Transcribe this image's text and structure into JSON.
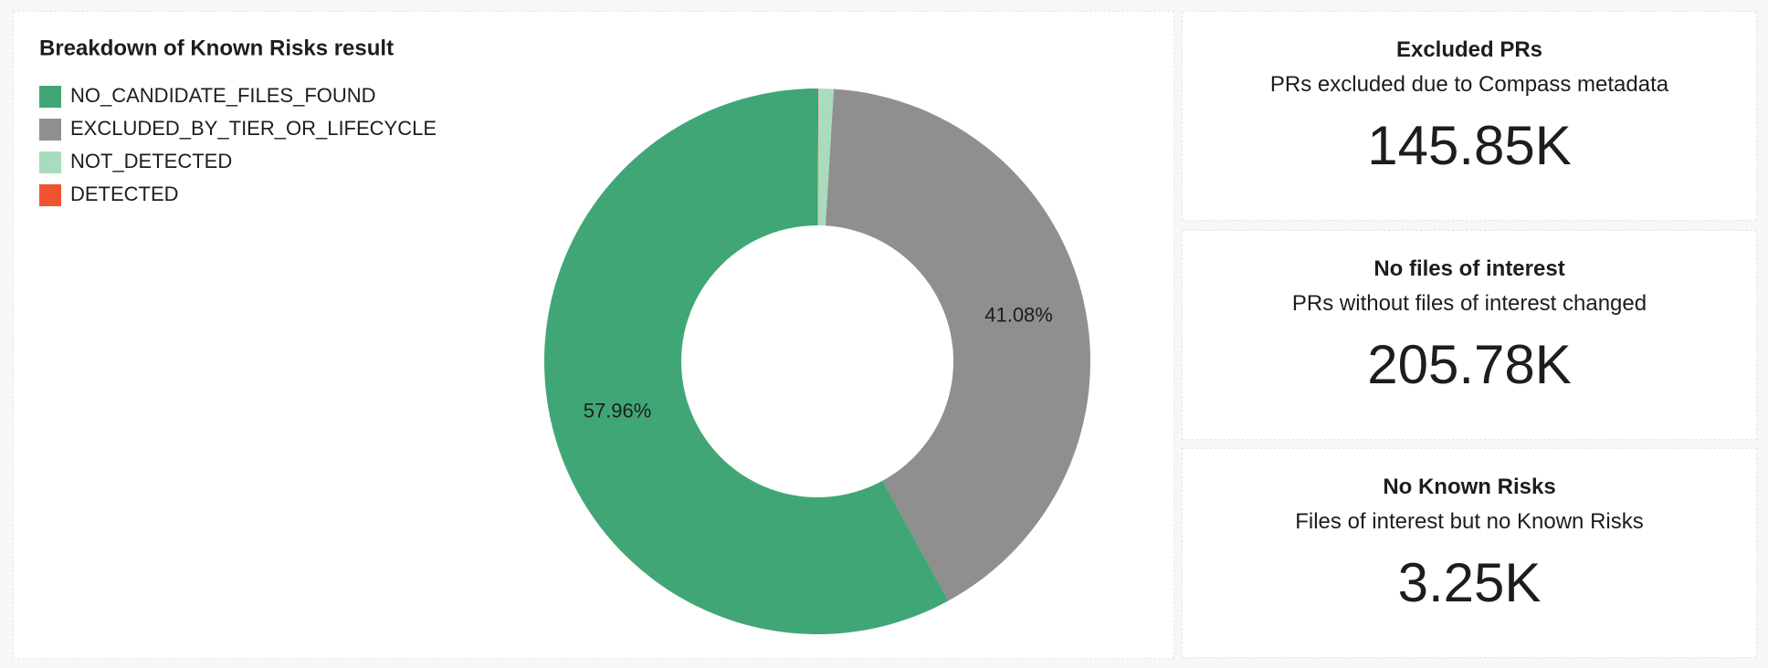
{
  "chart_data": {
    "type": "donut",
    "title": "Breakdown of Known Risks result",
    "categories": [
      "NO_CANDIDATE_FILES_FOUND",
      "EXCLUDED_BY_TIER_OR_LIFECYCLE",
      "NOT_DETECTED",
      "DETECTED"
    ],
    "values": [
      57.96,
      41.08,
      0.9,
      0.06
    ],
    "value_labels": [
      "57.96%",
      "41.08%",
      null,
      null
    ],
    "colors": [
      "#41a676",
      "#8f8f8f",
      "#a8dcbc",
      "#f0532f"
    ],
    "legend": "top-left"
  },
  "kpis": [
    {
      "title": "Excluded PRs",
      "subtitle": "PRs excluded due to Compass metadata",
      "value": "145.85K"
    },
    {
      "title": "No files of interest",
      "subtitle": "PRs without files of interest changed",
      "value": "205.78K"
    },
    {
      "title": "No Known Risks",
      "subtitle": "Files of interest but no Known Risks",
      "value": "3.25K"
    }
  ]
}
